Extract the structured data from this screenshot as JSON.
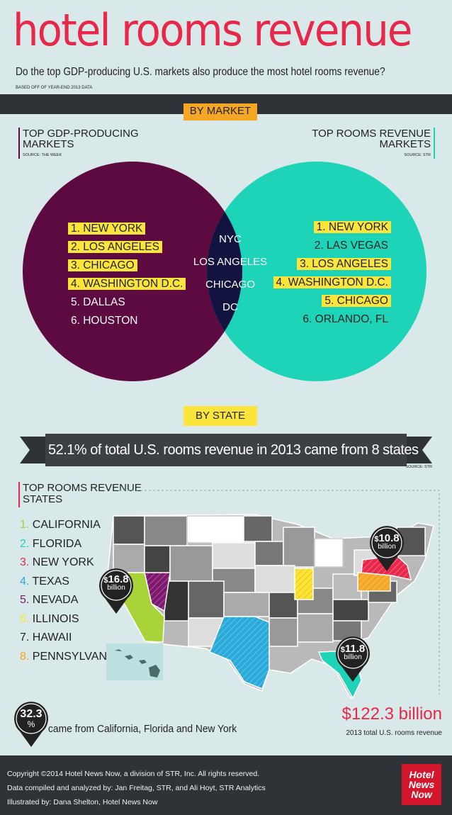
{
  "header": {
    "title": "hotel rooms revenue",
    "subtitle": "Do the top GDP-producing U.S. markets also produce the most hotel rooms revenue?",
    "based_on": "BASED OFF OF YEAR-END 2013 DATA"
  },
  "by_market": {
    "label": "BY MARKET",
    "left_title_1": "TOP GDP-PRODUCING",
    "left_title_2": "MARKETS",
    "left_source": "SOURCE: THE WEEK",
    "right_title_1": "TOP ROOMS REVENUE",
    "right_title_2": "MARKETS",
    "right_source": "SOURCE: STR",
    "left_list": [
      "1. NEW YORK",
      "2. LOS ANGELES",
      "3. CHICAGO",
      "4. WASHINGTON D.C.",
      "5. DALLAS",
      "6. HOUSTON"
    ],
    "right_list": [
      "1. NEW YORK",
      "2. LAS VEGAS",
      "3. LOS ANGELES",
      "4. WASHINGTON D.C.",
      "5. CHICAGO",
      "6. ORLANDO, FL"
    ],
    "overlap": [
      "NYC",
      "LOS ANGELES",
      "CHICAGO",
      "DC"
    ],
    "colors": {
      "left": "#5c0a3f",
      "right": "#1dd3b8",
      "overlap": "#12133f",
      "highlight": "#fbe53a"
    }
  },
  "by_state": {
    "label": "BY STATE",
    "banner": "52.1% of total U.S. rooms revenue in 2013 came from 8 states",
    "source": "SOURCE: STR",
    "list_title_1": "TOP ROOMS REVENUE",
    "list_title_2": "STATES",
    "states": [
      {
        "num": "1.",
        "name": "CALIFORNIA",
        "color": "#a8d43a"
      },
      {
        "num": "2.",
        "name": "FLORIDA",
        "color": "#1dd3b8"
      },
      {
        "num": "3.",
        "name": "NEW YORK",
        "color": "#e8284a"
      },
      {
        "num": "4.",
        "name": "TEXAS",
        "color": "#2ba9d8"
      },
      {
        "num": "5.",
        "name": "NEVADA",
        "color": "#7a1b6b"
      },
      {
        "num": "6.",
        "name": "ILLINOIS",
        "color": "#fbe53a"
      },
      {
        "num": "7.",
        "name": "HAWAII",
        "color": "#4d6a6a"
      },
      {
        "num": "8.",
        "name": "PENNSYLVANIA",
        "color": "#f5a623"
      }
    ],
    "pins": {
      "california": {
        "sym": "$",
        "value": "16.8",
        "unit": "billion"
      },
      "new_york": {
        "sym": "$",
        "value": "10.8",
        "unit": "billion"
      },
      "florida": {
        "sym": "$",
        "value": "11.8",
        "unit": "billion"
      },
      "share": {
        "value": "32.3",
        "unit": "%"
      }
    },
    "share_text": "came from California, Florida and New York",
    "total_value": "$122.3 billion",
    "total_label": "2013 total U.S. rooms revenue"
  },
  "footer": {
    "copyright": "Copyright  ©2014 Hotel News Now, a division of STR, Inc. All rights reserved.",
    "compiled": "Data compiled and analyzed by: Jan Freitag, STR, and Ali Hoyt, STR Analytics",
    "illustrated": "Illustrated by: Dana Shelton, Hotel News Now",
    "logo_1": "Hotel",
    "logo_2": "News",
    "logo_3": "Now"
  }
}
